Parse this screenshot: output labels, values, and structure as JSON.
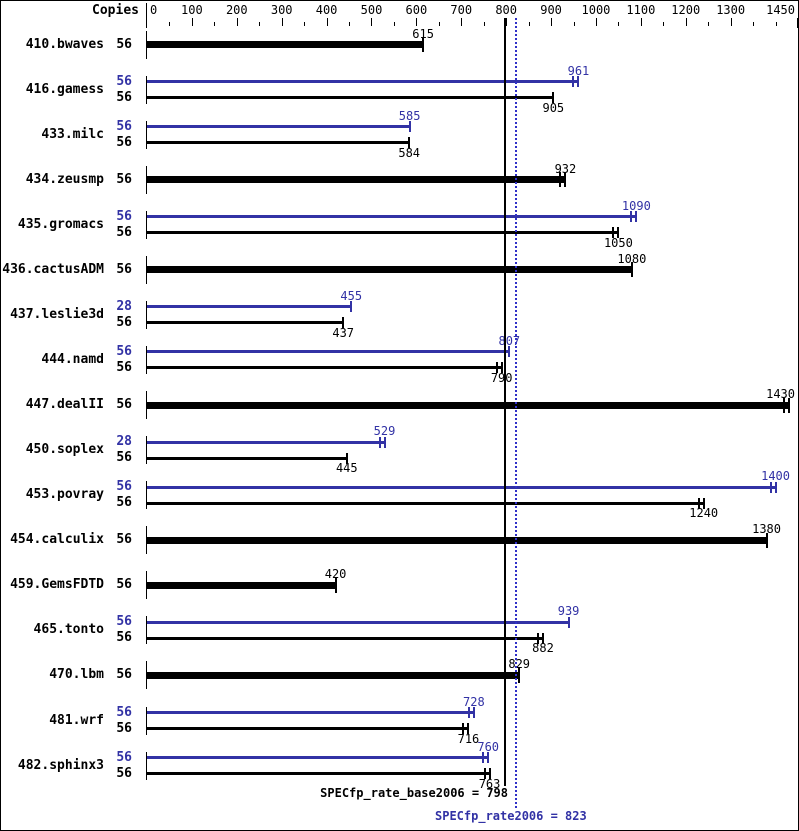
{
  "header": {
    "copies_label": "Copies"
  },
  "colors": {
    "base": "#000000",
    "peak": "#3232a5",
    "peak_line": "#3030c8",
    "background": "#ffffff"
  },
  "summary": {
    "base_label": "SPECfp_rate_base2006",
    "base_value": 798,
    "base_text": "SPECfp_rate_base2006 = 798",
    "peak_label": "SPECfp_rate2006",
    "peak_value": 823,
    "peak_text": "SPECfp_rate2006 = 823"
  },
  "chart_data": {
    "type": "bar",
    "orientation": "horizontal",
    "title": "",
    "xlabel": "",
    "ylabel": "Copies",
    "xlim": [
      0,
      1450
    ],
    "grid": false,
    "axis_labels": [
      0,
      100,
      200,
      300,
      400,
      500,
      600,
      700,
      800,
      900,
      1000,
      1100,
      1200,
      1300,
      1450
    ],
    "minor_tick_step": 50,
    "mean_lines": [
      {
        "name": "base",
        "value": 798,
        "style": "solid"
      },
      {
        "name": "peak",
        "value": 823,
        "style": "dotted"
      }
    ],
    "benchmarks": [
      {
        "name": "410.bwaves",
        "bars": [
          {
            "kind": "single",
            "copies": 56,
            "value": 615,
            "marks": 1
          }
        ]
      },
      {
        "name": "416.gamess",
        "bars": [
          {
            "kind": "peak",
            "copies": 56,
            "value": 961,
            "marks": 2
          },
          {
            "kind": "base",
            "copies": 56,
            "value": 905,
            "marks": 1
          }
        ]
      },
      {
        "name": "433.milc",
        "bars": [
          {
            "kind": "peak",
            "copies": 56,
            "value": 585,
            "marks": 1
          },
          {
            "kind": "base",
            "copies": 56,
            "value": 584,
            "marks": 1
          }
        ]
      },
      {
        "name": "434.zeusmp",
        "bars": [
          {
            "kind": "single",
            "copies": 56,
            "value": 932,
            "marks": 2
          }
        ]
      },
      {
        "name": "435.gromacs",
        "bars": [
          {
            "kind": "peak",
            "copies": 56,
            "value": 1090,
            "marks": 2
          },
          {
            "kind": "base",
            "copies": 56,
            "value": 1050,
            "marks": 2
          }
        ]
      },
      {
        "name": "436.cactusADM",
        "bars": [
          {
            "kind": "single",
            "copies": 56,
            "value": 1080,
            "marks": 1
          }
        ]
      },
      {
        "name": "437.leslie3d",
        "bars": [
          {
            "kind": "peak",
            "copies": 28,
            "value": 455,
            "marks": 1
          },
          {
            "kind": "base",
            "copies": 56,
            "value": 437,
            "marks": 1
          }
        ]
      },
      {
        "name": "444.namd",
        "bars": [
          {
            "kind": "peak",
            "copies": 56,
            "value": 807,
            "marks": 1
          },
          {
            "kind": "base",
            "copies": 56,
            "value": 790,
            "marks": 2
          }
        ]
      },
      {
        "name": "447.dealII",
        "bars": [
          {
            "kind": "single",
            "copies": 56,
            "value": 1430,
            "marks": 2
          }
        ]
      },
      {
        "name": "450.soplex",
        "bars": [
          {
            "kind": "peak",
            "copies": 28,
            "value": 529,
            "marks": 2
          },
          {
            "kind": "base",
            "copies": 56,
            "value": 445,
            "marks": 1
          }
        ]
      },
      {
        "name": "453.povray",
        "bars": [
          {
            "kind": "peak",
            "copies": 56,
            "value": 1400,
            "marks": 2
          },
          {
            "kind": "base",
            "copies": 56,
            "value": 1240,
            "marks": 2
          }
        ]
      },
      {
        "name": "454.calculix",
        "bars": [
          {
            "kind": "single",
            "copies": 56,
            "value": 1380,
            "marks": 1
          }
        ]
      },
      {
        "name": "459.GemsFDTD",
        "bars": [
          {
            "kind": "single",
            "copies": 56,
            "value": 420,
            "marks": 1
          }
        ]
      },
      {
        "name": "465.tonto",
        "bars": [
          {
            "kind": "peak",
            "copies": 56,
            "value": 939,
            "marks": 1
          },
          {
            "kind": "base",
            "copies": 56,
            "value": 882,
            "marks": 2
          }
        ]
      },
      {
        "name": "470.lbm",
        "bars": [
          {
            "kind": "single",
            "copies": 56,
            "value": 829,
            "marks": 1
          }
        ]
      },
      {
        "name": "481.wrf",
        "bars": [
          {
            "kind": "peak",
            "copies": 56,
            "value": 728,
            "marks": 2
          },
          {
            "kind": "base",
            "copies": 56,
            "value": 716,
            "marks": 2
          }
        ]
      },
      {
        "name": "482.sphinx3",
        "bars": [
          {
            "kind": "peak",
            "copies": 56,
            "value": 760,
            "marks": 2
          },
          {
            "kind": "base",
            "copies": 56,
            "value": 763,
            "marks": 2
          }
        ]
      }
    ]
  }
}
